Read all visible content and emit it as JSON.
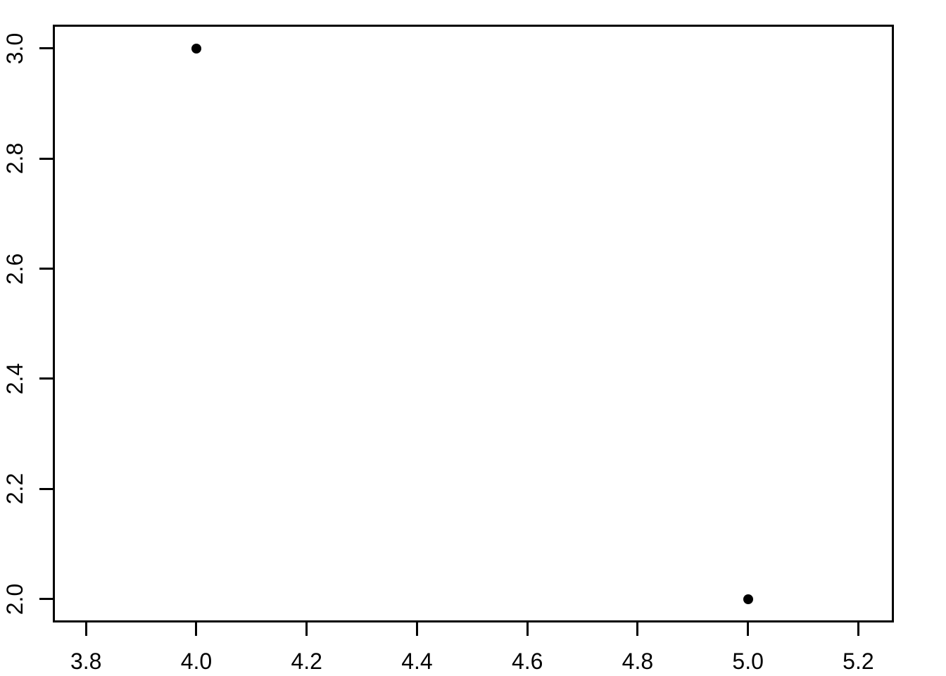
{
  "chart_data": {
    "type": "scatter",
    "title": "",
    "xlabel": "",
    "ylabel": "",
    "points": [
      {
        "x": 4.0,
        "y": 3.0
      },
      {
        "x": 5.0,
        "y": 2.0
      }
    ],
    "x_ticks": [
      {
        "value": 3.8,
        "label": "3.8"
      },
      {
        "value": 4.0,
        "label": "4.0"
      },
      {
        "value": 4.2,
        "label": "4.2"
      },
      {
        "value": 4.4,
        "label": "4.4"
      },
      {
        "value": 4.6,
        "label": "4.6"
      },
      {
        "value": 4.8,
        "label": "4.8"
      },
      {
        "value": 5.0,
        "label": "5.0"
      },
      {
        "value": 5.2,
        "label": "5.2"
      }
    ],
    "y_ticks": [
      {
        "value": 2.0,
        "label": "2.0"
      },
      {
        "value": 2.2,
        "label": "2.2"
      },
      {
        "value": 2.4,
        "label": "2.4"
      },
      {
        "value": 2.6,
        "label": "2.6"
      },
      {
        "value": 2.8,
        "label": "2.8"
      },
      {
        "value": 3.0,
        "label": "3.0"
      }
    ],
    "xlim": [
      3.741,
      5.262
    ],
    "ylim": [
      1.96,
      3.042
    ],
    "grid": false,
    "legend": null,
    "marker": "filled-circle",
    "colors": {
      "point": "#000000",
      "axis": "#000000",
      "label": "#000000",
      "background": "#ffffff"
    }
  }
}
